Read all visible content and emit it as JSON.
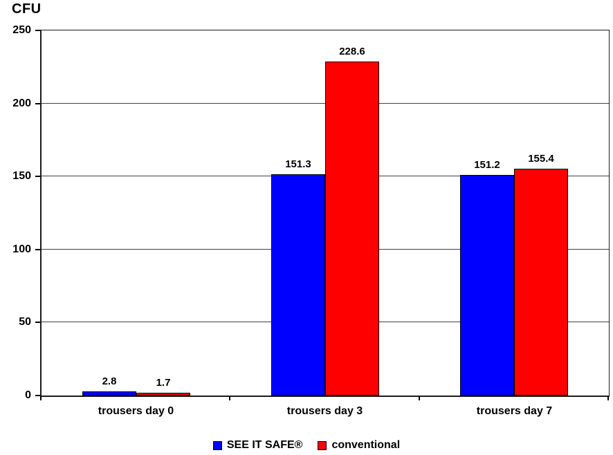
{
  "chart_data": {
    "type": "bar",
    "title": "",
    "ylabel": "CFU",
    "xlabel": "",
    "categories": [
      "trousers day 0",
      "trousers day 3",
      "trousers day 7"
    ],
    "series": [
      {
        "name": "SEE IT SAFE®",
        "color": "#0000ff",
        "values": [
          2.8,
          151.3,
          151.2
        ]
      },
      {
        "name": "conventional",
        "color": "#ff0000",
        "values": [
          1.7,
          228.6,
          155.4
        ]
      }
    ],
    "data_labels": [
      [
        "2.8",
        "151.3",
        "151.2"
      ],
      [
        "1.7",
        "228.6",
        "155.4"
      ]
    ],
    "ylim": [
      0,
      250
    ],
    "yticks": [
      "0",
      "50",
      "100",
      "150",
      "200",
      "250"
    ],
    "grid": true,
    "legend_position": "bottom",
    "plot_background": "#ffffff",
    "bar_border_color": "#000000",
    "axis_color": "#000000",
    "gridline_color": "#404040"
  }
}
